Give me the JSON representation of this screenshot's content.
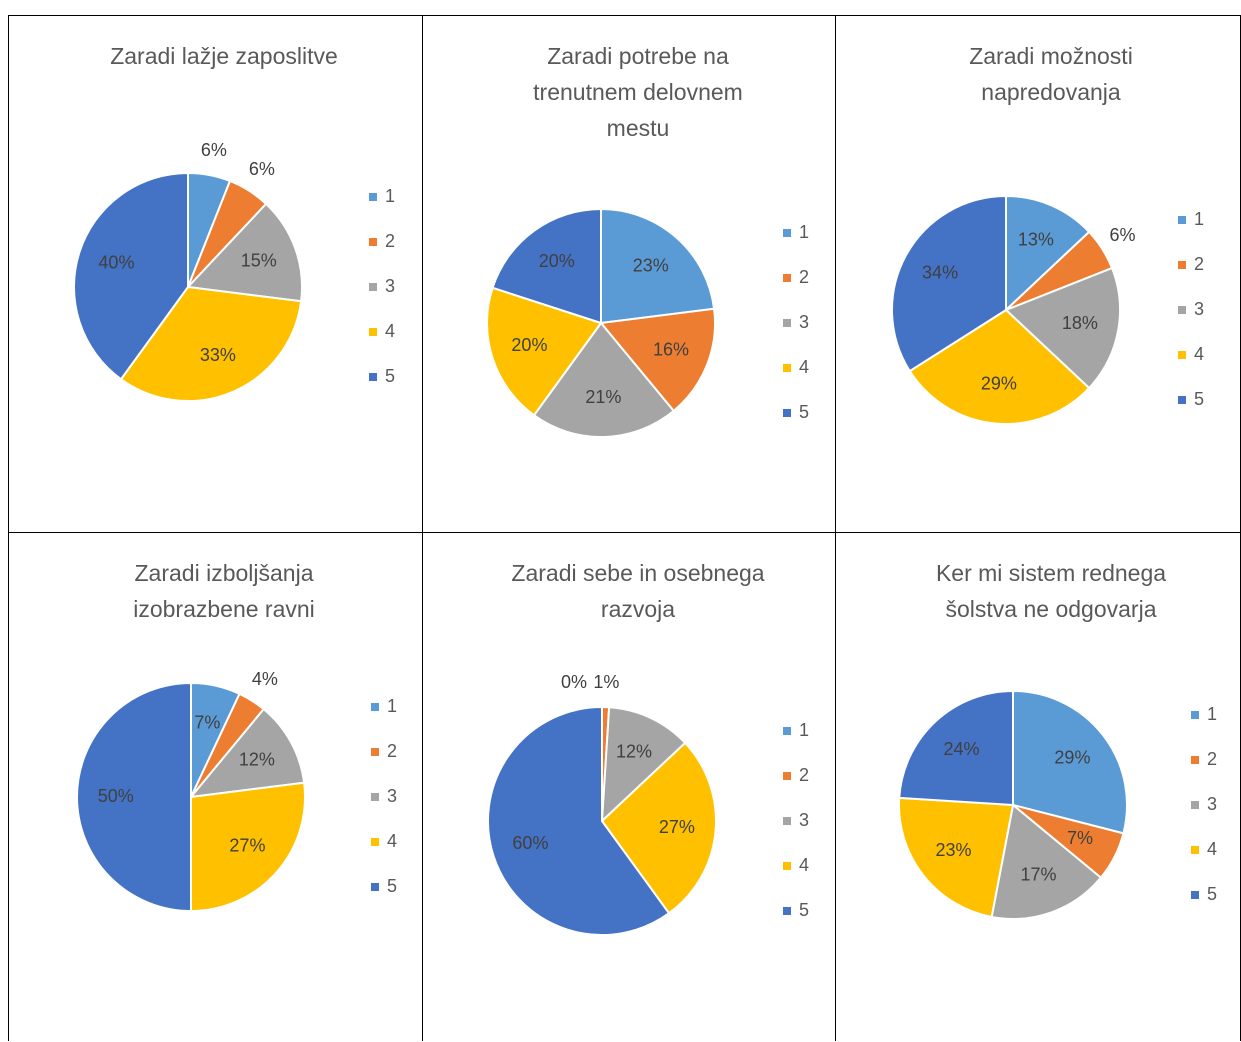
{
  "chart_data": [
    {
      "type": "pie",
      "title": "Zaradi lažje zaposlitve",
      "categories": [
        "1",
        "2",
        "3",
        "4",
        "5"
      ],
      "values": [
        6,
        6,
        15,
        33,
        40
      ],
      "value_labels": [
        "6%",
        "6%",
        "15%",
        "33%",
        "40%"
      ],
      "colors": [
        "#5b9bd5",
        "#ed7d31",
        "#a5a5a5",
        "#ffc000",
        "#4472c4"
      ],
      "legend": "right"
    },
    {
      "type": "pie",
      "title": "Zaradi potrebe na trenutnem delovnem mestu",
      "categories": [
        "1",
        "2",
        "3",
        "4",
        "5"
      ],
      "values": [
        23,
        16,
        21,
        20,
        20
      ],
      "value_labels": [
        "23%",
        "16%",
        "21%",
        "20%",
        "20%"
      ],
      "colors": [
        "#5b9bd5",
        "#ed7d31",
        "#a5a5a5",
        "#ffc000",
        "#4472c4"
      ],
      "legend": "right"
    },
    {
      "type": "pie",
      "title": "Zaradi možnosti napredovanja",
      "categories": [
        "1",
        "2",
        "3",
        "4",
        "5"
      ],
      "values": [
        13,
        6,
        18,
        29,
        34
      ],
      "value_labels": [
        "13%",
        "6%",
        "18%",
        "29%",
        "34%"
      ],
      "colors": [
        "#5b9bd5",
        "#ed7d31",
        "#a5a5a5",
        "#ffc000",
        "#4472c4"
      ],
      "legend": "right"
    },
    {
      "type": "pie",
      "title": "Zaradi izboljšanja izobrazbene ravni",
      "categories": [
        "1",
        "2",
        "3",
        "4",
        "5"
      ],
      "values": [
        7,
        4,
        12,
        27,
        50
      ],
      "value_labels": [
        "7%",
        "4%",
        "12%",
        "27%",
        "50%"
      ],
      "colors": [
        "#5b9bd5",
        "#ed7d31",
        "#a5a5a5",
        "#ffc000",
        "#4472c4"
      ],
      "legend": "right"
    },
    {
      "type": "pie",
      "title": "Zaradi sebe in osebnega razvoja",
      "categories": [
        "1",
        "2",
        "3",
        "4",
        "5"
      ],
      "values": [
        0,
        1,
        12,
        27,
        60
      ],
      "value_labels": [
        "0%",
        "1%",
        "12%",
        "27%",
        "60%"
      ],
      "colors": [
        "#5b9bd5",
        "#ed7d31",
        "#a5a5a5",
        "#ffc000",
        "#4472c4"
      ],
      "legend": "right"
    },
    {
      "type": "pie",
      "title": "Ker mi sistem rednega šolstva ne odgovarja",
      "categories": [
        "1",
        "2",
        "3",
        "4",
        "5"
      ],
      "values": [
        29,
        7,
        17,
        23,
        24
      ],
      "value_labels": [
        "29%",
        "7%",
        "17%",
        "23%",
        "24%"
      ],
      "colors": [
        "#5b9bd5",
        "#ed7d31",
        "#a5a5a5",
        "#ffc000",
        "#4472c4"
      ],
      "legend": "right"
    }
  ]
}
